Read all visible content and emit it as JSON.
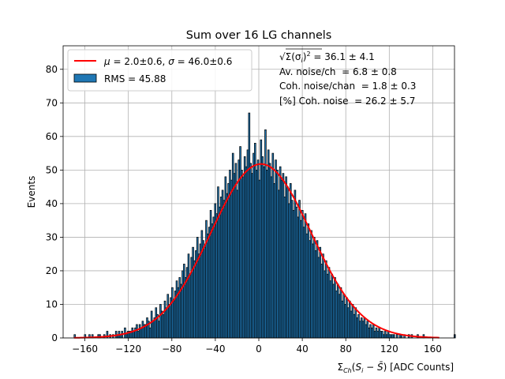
{
  "chart_data": {
    "type": "bar",
    "title": "Sum over 16 LG channels",
    "xlabel": "Σ_Ch(S_i − S̄) [ADC Counts]",
    "xlabel_parts": {
      "sigma": "Σ",
      "sub": "Ch",
      "rest1": "(",
      "s": "S",
      "i": "i",
      "minus": " − ",
      "sbar": "S̄",
      "rest2": ") [ADC Counts]"
    },
    "ylabel": "Events",
    "xlim": [
      -180,
      180
    ],
    "ylim": [
      0,
      87
    ],
    "xticks": [
      -160,
      -120,
      -80,
      -40,
      0,
      40,
      80,
      120,
      160
    ],
    "xtick_labels": [
      "−160",
      "−120",
      "−80",
      "−40",
      "0",
      "40",
      "80",
      "120",
      "160"
    ],
    "yticks": [
      0,
      10,
      20,
      30,
      40,
      50,
      60,
      70,
      80
    ],
    "grid": true,
    "legend_position": "top-left",
    "legend": [
      {
        "label": "μ = 2.0±0.6, σ = 46.0±0.6",
        "kind": "line",
        "color": "#ff0000"
      },
      {
        "label": "RMS = 45.88",
        "kind": "patch",
        "color": "#1f77b4"
      }
    ],
    "legend_parts": {
      "mu": "μ",
      "eq1": " = 2.0±0.6, ",
      "sig": "σ",
      "eq2": " = 46.0±0.6"
    },
    "annotations": [
      "√Σ(σ_i)² = 36.1 ± 4.1",
      "Av. noise/ch  = 6.8 ± 0.8",
      "Coh. noise/chan  = 1.8 ± 0.3",
      "[%] Coh. noise  = 26.2 ± 5.7"
    ],
    "annotation_parts": {
      "sqrt": "√",
      "sum": "Σ(σ",
      "sub_i": "i",
      "close": ")",
      "sup2": "2",
      "val": " = 36.1 ± 4.1"
    },
    "fit": {
      "mu": 2.0,
      "sigma": 46.0,
      "amplitude": 51.8,
      "color": "#ff0000"
    },
    "histogram": {
      "bin_start": -170,
      "bin_width": 1.36,
      "bar_color": "#1f77b4",
      "edge_color": "#000000",
      "counts": [
        1,
        0,
        0,
        0,
        0,
        0,
        0,
        1,
        0,
        0,
        1,
        0,
        1,
        0,
        0,
        0,
        1,
        1,
        0,
        0,
        1,
        0,
        2,
        0,
        1,
        0,
        1,
        0,
        2,
        1,
        2,
        1,
        2,
        0,
        3,
        1,
        2,
        2,
        2,
        3,
        2,
        3,
        4,
        2,
        4,
        3,
        5,
        4,
        4,
        6,
        5,
        3,
        8,
        5,
        6,
        9,
        7,
        5,
        10,
        8,
        7,
        11,
        9,
        13,
        10,
        12,
        15,
        11,
        14,
        17,
        15,
        18,
        16,
        20,
        22,
        18,
        21,
        25,
        19,
        24,
        27,
        23,
        26,
        30,
        25,
        28,
        32,
        29,
        27,
        35,
        31,
        33,
        38,
        34,
        36,
        40,
        37,
        45,
        39,
        42,
        44,
        41,
        48,
        43,
        46,
        50,
        47,
        55,
        49,
        52,
        44,
        53,
        57,
        50,
        48,
        54,
        51,
        56,
        67,
        52,
        49,
        55,
        58,
        50,
        53,
        47,
        59,
        54,
        51,
        62,
        50,
        56,
        52,
        48,
        55,
        46,
        53,
        50,
        44,
        51,
        47,
        49,
        42,
        48,
        45,
        40,
        46,
        41,
        38,
        44,
        39,
        36,
        41,
        35,
        38,
        33,
        37,
        31,
        34,
        29,
        32,
        28,
        30,
        26,
        29,
        24,
        27,
        22,
        25,
        20,
        23,
        19,
        21,
        17,
        19,
        16,
        18,
        14,
        16,
        13,
        15,
        11,
        13,
        10,
        12,
        9,
        11,
        8,
        10,
        7,
        9,
        6,
        7,
        5,
        6,
        5,
        6,
        4,
        5,
        3,
        4,
        3,
        4,
        2,
        3,
        2,
        3,
        2,
        2,
        1,
        2,
        1,
        2,
        1,
        1,
        1,
        1,
        0,
        1,
        0,
        1,
        1,
        0,
        1,
        0,
        0,
        1,
        0,
        1,
        0,
        0,
        0,
        1,
        0,
        0,
        0,
        1,
        0,
        0,
        0,
        0,
        0,
        0,
        0,
        0,
        0,
        0,
        0,
        0,
        0,
        0,
        0,
        0,
        0,
        0,
        0,
        0,
        1,
        0,
        0,
        0,
        0
      ]
    }
  }
}
